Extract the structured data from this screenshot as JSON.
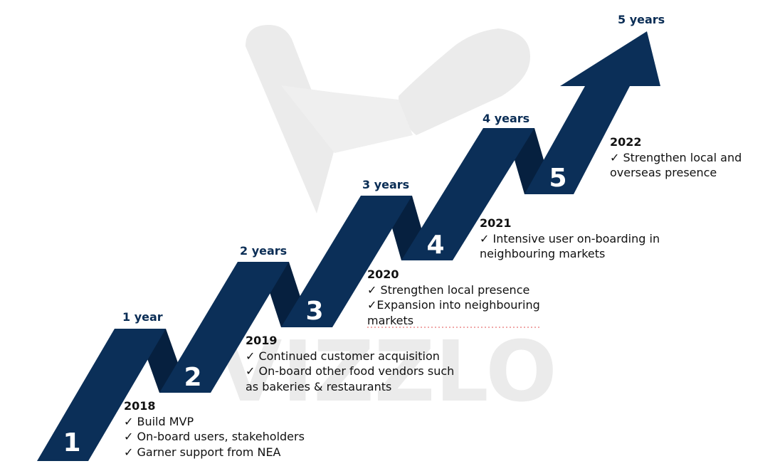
{
  "diagram": {
    "colors": {
      "ribbon": "#0b2f58",
      "ribbon_fold": "#06203f",
      "arrow": "#0b2f58",
      "watermark": "#ebebeb",
      "year_label": "#0a2d55",
      "text": "#111111",
      "dotted_line": "#e05050"
    },
    "watermark_text": "VIZZLO",
    "duration_labels": [
      "1 year",
      "2 years",
      "3 years",
      "4 years",
      "5 years"
    ],
    "steps": [
      {
        "number": "1",
        "year": "2018",
        "items": [
          "✓ Build MVP",
          "✓ On-board users, stakeholders",
          "✓ Garner support from NEA"
        ]
      },
      {
        "number": "2",
        "year": "2019",
        "items": [
          "✓ Continued customer acquisition",
          "✓ On-board other food vendors such",
          "as bakeries & restaurants"
        ]
      },
      {
        "number": "3",
        "year": "2020",
        "items": [
          "✓ Strengthen local presence",
          "✓Expansion into neighbouring",
          "markets"
        ]
      },
      {
        "number": "4",
        "year": "2021",
        "items": [
          "✓ Intensive user on-boarding in",
          "neighbouring markets"
        ]
      },
      {
        "number": "5",
        "year": "2022",
        "items": [
          "✓ Strengthen local and",
          "overseas presence"
        ]
      }
    ]
  }
}
